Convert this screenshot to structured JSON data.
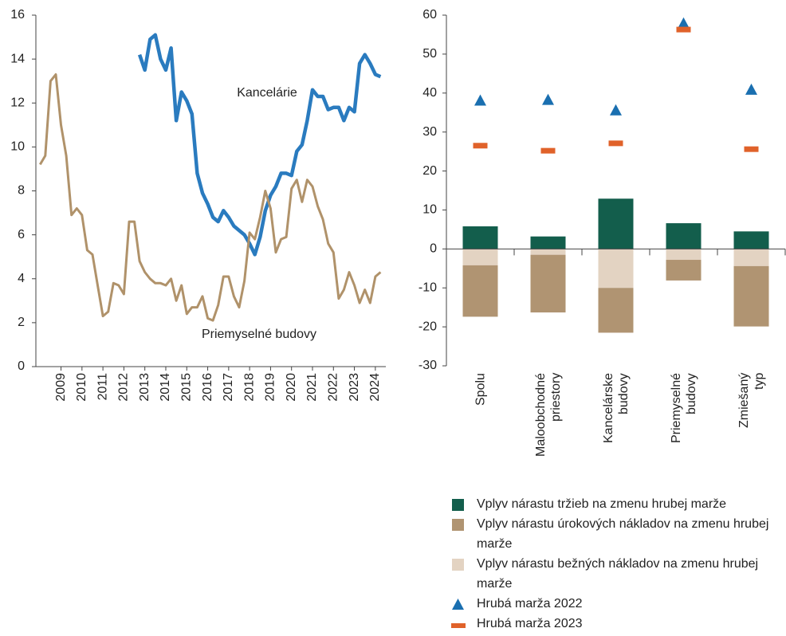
{
  "chart_data": [
    {
      "type": "line",
      "x": [
        2008,
        2008.25,
        2008.5,
        2008.75,
        2009,
        2009.25,
        2009.5,
        2009.75,
        2010,
        2010.25,
        2010.5,
        2010.75,
        2011,
        2011.25,
        2011.5,
        2011.75,
        2012,
        2012.25,
        2012.5,
        2012.75,
        2013,
        2013.25,
        2013.5,
        2013.75,
        2014,
        2014.25,
        2014.5,
        2014.75,
        2015,
        2015.25,
        2015.5,
        2015.75,
        2016,
        2016.25,
        2016.5,
        2016.75,
        2017,
        2017.25,
        2017.5,
        2017.75,
        2018,
        2018.25,
        2018.5,
        2018.75,
        2019,
        2019.25,
        2019.5,
        2019.75,
        2020,
        2020.25,
        2020.5,
        2020.75,
        2021,
        2021.25,
        2021.5,
        2021.75,
        2022,
        2022.25,
        2022.5,
        2022.75,
        2023,
        2023.25,
        2023.5,
        2023.75,
        2024,
        2024.25
      ],
      "series": [
        {
          "name": "Kancelárie",
          "color": "#2a7bbf",
          "values": [
            null,
            null,
            null,
            null,
            null,
            null,
            null,
            null,
            null,
            null,
            null,
            null,
            null,
            null,
            null,
            null,
            null,
            null,
            null,
            14.2,
            13.5,
            14.9,
            15.1,
            14.0,
            13.5,
            14.5,
            11.2,
            12.5,
            12.1,
            11.5,
            8.8,
            7.9,
            7.4,
            6.8,
            6.6,
            7.1,
            6.8,
            6.4,
            6.2,
            6.0,
            5.6,
            5.1,
            5.9,
            7.1,
            7.8,
            8.2,
            8.8,
            8.8,
            8.7,
            9.8,
            10.1,
            11.2,
            12.6,
            12.3,
            12.3,
            11.7,
            11.8,
            11.8,
            11.2,
            11.8,
            11.6,
            13.8,
            14.2,
            13.8,
            13.3,
            13.2
          ]
        },
        {
          "name": "Priemyselné budovy",
          "color": "#b0926a",
          "values": [
            9.2,
            9.6,
            13.0,
            13.3,
            11.0,
            9.6,
            6.9,
            7.2,
            6.9,
            5.3,
            5.1,
            3.7,
            2.3,
            2.5,
            3.8,
            3.7,
            3.3,
            6.6,
            6.6,
            4.8,
            4.3,
            4.0,
            3.8,
            3.8,
            3.7,
            4.0,
            3.0,
            3.7,
            2.4,
            2.7,
            2.7,
            3.2,
            2.2,
            2.1,
            2.8,
            4.1,
            4.1,
            3.2,
            2.7,
            3.9,
            6.1,
            5.8,
            6.8,
            8.0,
            7.2,
            5.2,
            5.8,
            5.9,
            8.1,
            8.5,
            7.5,
            8.5,
            8.2,
            7.3,
            6.7,
            5.6,
            5.2,
            3.1,
            3.5,
            4.3,
            3.7,
            2.9,
            3.5,
            2.9,
            4.1,
            4.3
          ]
        }
      ],
      "xlim": [
        2007.8,
        2024.5
      ],
      "xticks": [
        2009,
        2010,
        2011,
        2012,
        2013,
        2014,
        2015,
        2016,
        2017,
        2018,
        2019,
        2020,
        2021,
        2022,
        2023,
        2024
      ],
      "ylim": [
        0,
        16
      ],
      "yticks": [
        0,
        2,
        4,
        6,
        8,
        10,
        12,
        14,
        16
      ]
    },
    {
      "type": "bar",
      "stacked": true,
      "categories": [
        "Spolu",
        "Maloobchodné\npriestory",
        "Kancelárske\nbudovy",
        "Priemyselné\nbudovy",
        "Zmiešaný\ntyp"
      ],
      "series": [
        {
          "name": "Vplyv nárastu tržieb na zmenu hrubej marže",
          "type": "bar",
          "color": "#135e4c",
          "values": [
            5.8,
            3.2,
            12.9,
            6.6,
            4.5
          ]
        },
        {
          "name": "Vplyv nárastu úrokových nákladov na zmenu hrubej marže",
          "type": "bar",
          "color": "#b09472",
          "values": [
            -13.2,
            -14.8,
            -11.5,
            -5.3,
            -15.5
          ]
        },
        {
          "name": "Vplyv nárastu bežných nákladov na zmenu hrubej marže",
          "type": "bar",
          "color": "#e3d3c2",
          "values": [
            -4.2,
            -1.5,
            -10.0,
            -2.8,
            -4.4
          ]
        },
        {
          "name": "Hrubá marža 2022",
          "type": "scatter",
          "marker": "triangle",
          "color": "#1a6fb0",
          "values": [
            38,
            38.2,
            35.5,
            57.8,
            40.8
          ]
        },
        {
          "name": "Hrubá marža 2023",
          "type": "scatter",
          "marker": "dash",
          "color": "#e0622a",
          "values": [
            26.5,
            25.2,
            27.1,
            56.3,
            25.6
          ]
        }
      ],
      "ylim": [
        -30,
        60
      ],
      "yticks": [
        -30,
        -20,
        -10,
        0,
        10,
        20,
        30,
        40,
        50,
        60
      ]
    }
  ]
}
